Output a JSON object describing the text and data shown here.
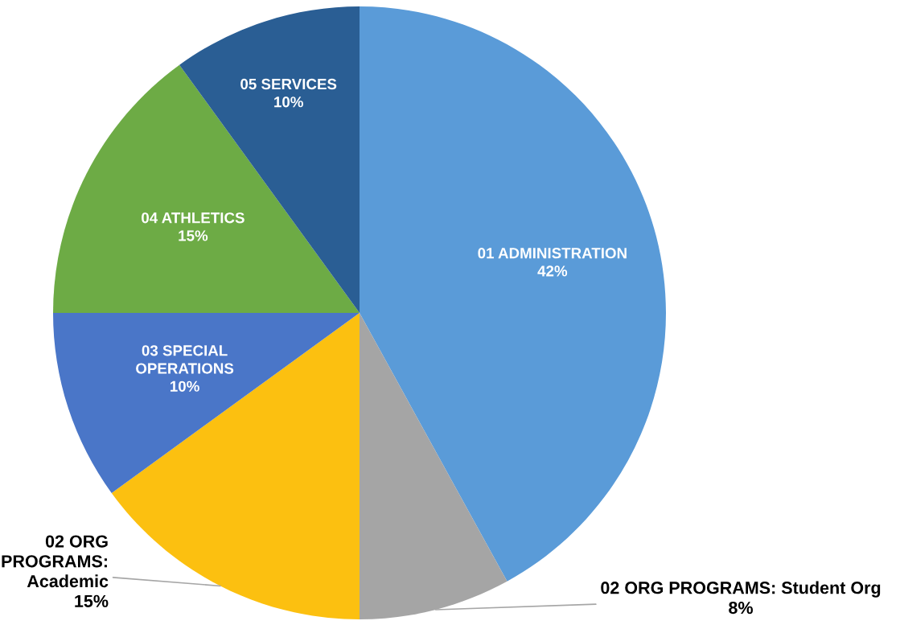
{
  "chart_data": {
    "type": "pie",
    "categories": [
      "01 ADMINISTRATION",
      "02 ORG PROGRAMS: Student Org",
      "02 ORG\nPROGRAMS:\nAcademic",
      "03 SPECIAL\nOPERATIONS",
      "04 ATHLETICS",
      "05 SERVICES"
    ],
    "values": [
      42,
      8,
      15,
      10,
      15,
      10
    ],
    "value_labels": [
      "42%",
      "8%",
      "15%",
      "10%",
      "15%",
      "10%"
    ],
    "colors": [
      "#5a9bd8",
      "#a5a5a5",
      "#fcc010",
      "#4a76c8",
      "#6dab45",
      "#2a5e94"
    ]
  }
}
